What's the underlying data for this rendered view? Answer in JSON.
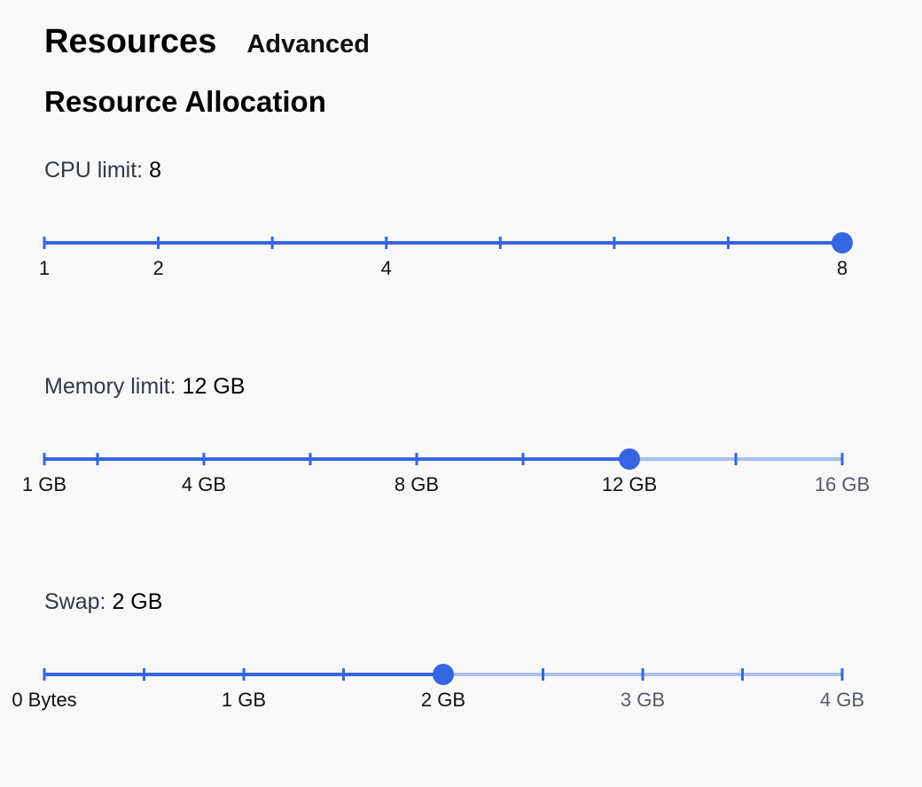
{
  "tabs": {
    "resources": "Resources",
    "advanced": "Advanced"
  },
  "section_title": "Resource Allocation",
  "colors": {
    "accent": "#3566e0",
    "track_inactive": "#a9bfee",
    "background": "#f8f8f8"
  },
  "sliders": [
    {
      "id": "cpu",
      "label": "CPU limit:",
      "value_text": "8",
      "min": 1,
      "max": 8,
      "value": 8,
      "ticks": [
        1,
        2,
        3,
        4,
        5,
        6,
        7,
        8
      ],
      "tick_labels": [
        {
          "at": 1,
          "text": "1"
        },
        {
          "at": 2,
          "text": "2"
        },
        {
          "at": 4,
          "text": "4"
        },
        {
          "at": 8,
          "text": "8"
        }
      ]
    },
    {
      "id": "memory",
      "label": "Memory limit:",
      "value_text": "12 GB",
      "min": 1,
      "max": 16,
      "value": 12,
      "ticks": [
        1,
        2,
        4,
        6,
        8,
        10,
        12,
        14,
        16
      ],
      "tick_labels": [
        {
          "at": 1,
          "text": "1 GB"
        },
        {
          "at": 4,
          "text": "4 GB"
        },
        {
          "at": 8,
          "text": "8 GB"
        },
        {
          "at": 12,
          "text": "12 GB"
        },
        {
          "at": 16,
          "text": "16 GB"
        }
      ]
    },
    {
      "id": "swap",
      "label": "Swap:",
      "value_text": "2 GB",
      "min": 0,
      "max": 4,
      "value": 2,
      "ticks": [
        0,
        0.5,
        1,
        1.5,
        2,
        2.5,
        3,
        3.5,
        4
      ],
      "tick_labels": [
        {
          "at": 0,
          "text": "0 Bytes"
        },
        {
          "at": 1,
          "text": "1 GB"
        },
        {
          "at": 2,
          "text": "2 GB"
        },
        {
          "at": 3,
          "text": "3 GB"
        },
        {
          "at": 4,
          "text": "4 GB"
        }
      ]
    }
  ]
}
